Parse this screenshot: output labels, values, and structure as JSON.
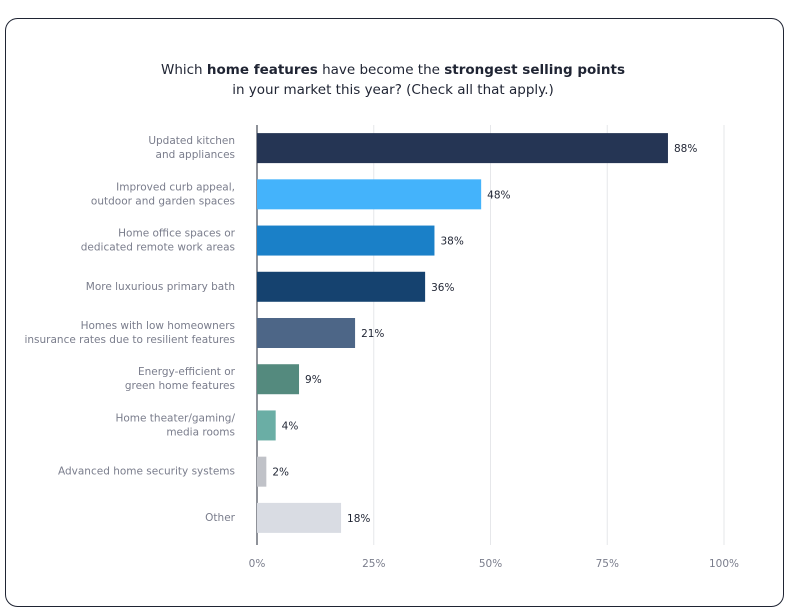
{
  "chart_data": {
    "type": "bar",
    "orientation": "horizontal",
    "title": [
      [
        {
          "text": "Which ",
          "bold": false
        },
        {
          "text": "home features",
          "bold": true
        },
        {
          "text": " have become the ",
          "bold": false
        },
        {
          "text": "strongest selling points",
          "bold": true
        }
      ],
      [
        {
          "text": "in your market this year? (Check all that apply.)",
          "bold": false
        }
      ]
    ],
    "categories": [
      "Updated kitchen\nand appliances",
      "Improved curb appeal,\noutdoor and garden spaces",
      "Home office spaces or\ndedicated remote work areas",
      "More luxurious primary bath",
      "Homes with low homeowners\ninsurance rates due to resilient features",
      "Energy-efficient or\ngreen home features",
      "Home theater/gaming/\nmedia rooms",
      "Advanced home security systems",
      "Other"
    ],
    "values": [
      88,
      48,
      38,
      36,
      21,
      9,
      4,
      2,
      18
    ],
    "value_labels": [
      "88%",
      "48%",
      "38%",
      "36%",
      "21%",
      "9%",
      "4%",
      "2%",
      "18%"
    ],
    "colors": [
      "#253554",
      "#44b3fb",
      "#1a80c8",
      "#15426f",
      "#4d6687",
      "#548a7e",
      "#6aaea5",
      "#c0c2c8",
      "#d9dce3"
    ],
    "xlim": [
      0,
      100
    ],
    "xticks": [
      {
        "value": 0,
        "label": "0%"
      },
      {
        "value": 25,
        "label": "25%"
      },
      {
        "value": 50,
        "label": "50%"
      },
      {
        "value": 75,
        "label": "75%"
      },
      {
        "value": 100,
        "label": "100%"
      }
    ],
    "grid": true
  }
}
